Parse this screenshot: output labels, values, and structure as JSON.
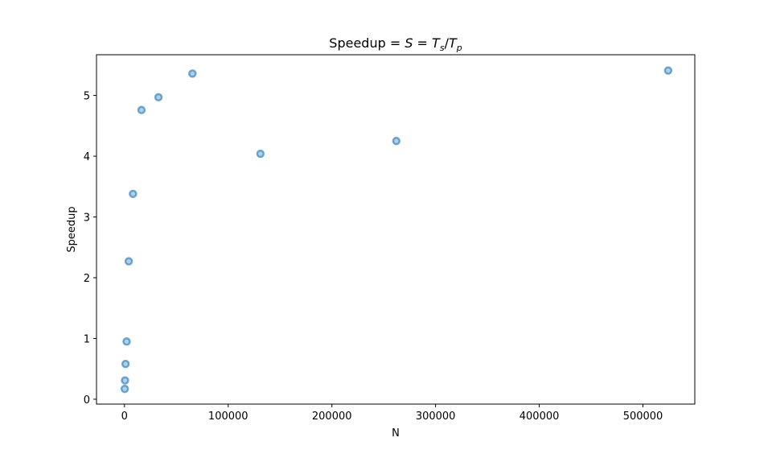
{
  "chart_data": {
    "type": "scatter",
    "title_text": "Speedup = ",
    "title_math": {
      "S": "S",
      "eq": " = ",
      "T": "T",
      "s": "s",
      "slash": "/",
      "T2": "T",
      "p": "p"
    },
    "xlabel": "N",
    "ylabel": "Speedup",
    "xlim": [
      -27000,
      550000
    ],
    "ylim": [
      -0.08,
      5.67
    ],
    "xticks": [
      0,
      100000,
      200000,
      300000,
      400000,
      500000
    ],
    "xtick_labels": [
      "0",
      "100000",
      "200000",
      "300000",
      "400000",
      "500000"
    ],
    "yticks": [
      0,
      1,
      2,
      3,
      4,
      5
    ],
    "ytick_labels": [
      "0",
      "1",
      "2",
      "3",
      "4",
      "5"
    ],
    "grid": false,
    "marker_color": "#1f77b4",
    "points": [
      {
        "x": 256,
        "y": 0.17
      },
      {
        "x": 512,
        "y": 0.31
      },
      {
        "x": 1024,
        "y": 0.58
      },
      {
        "x": 2048,
        "y": 0.95
      },
      {
        "x": 4096,
        "y": 2.27
      },
      {
        "x": 8192,
        "y": 3.38
      },
      {
        "x": 16384,
        "y": 4.76
      },
      {
        "x": 32768,
        "y": 4.97
      },
      {
        "x": 65536,
        "y": 5.36
      },
      {
        "x": 131072,
        "y": 4.04
      },
      {
        "x": 262144,
        "y": 4.25
      },
      {
        "x": 524288,
        "y": 5.41
      }
    ]
  }
}
